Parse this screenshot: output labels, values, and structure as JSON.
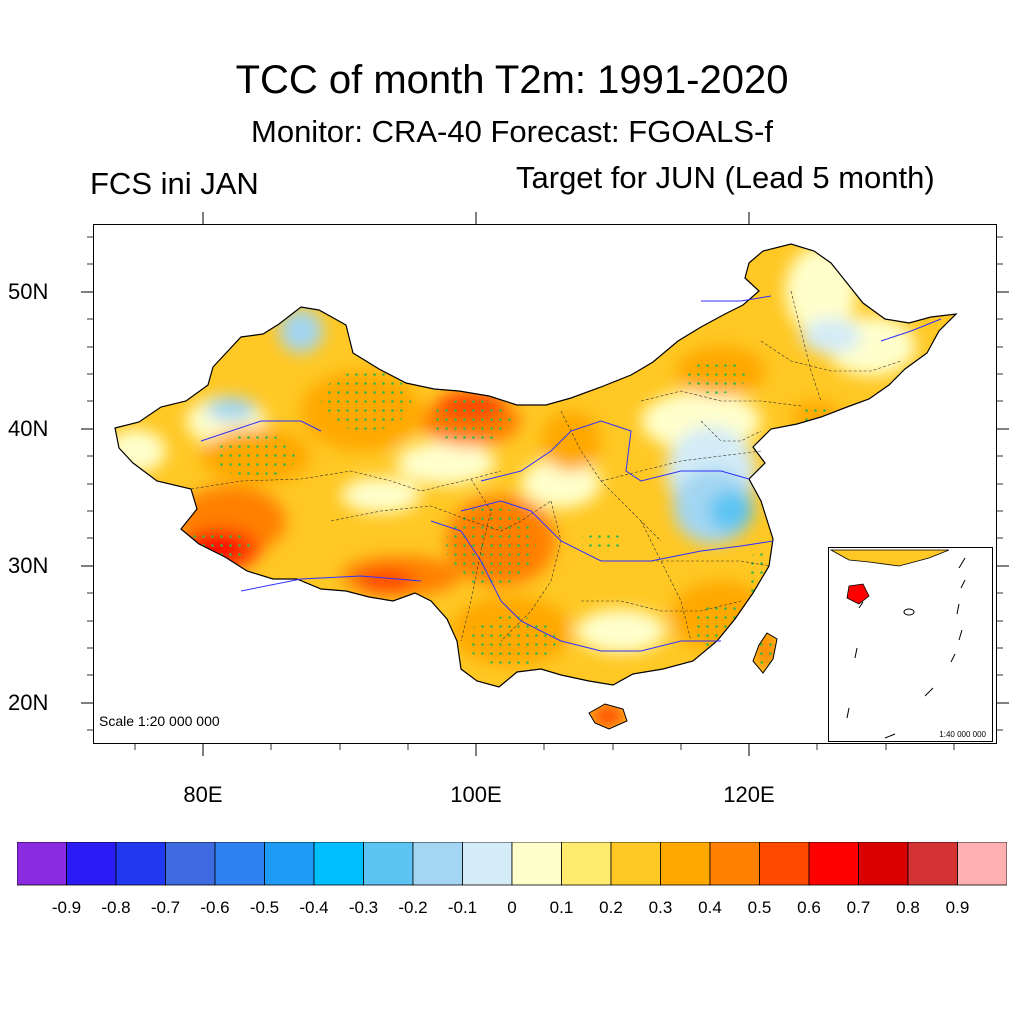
{
  "title": "TCC of month T2m: 1991-2020",
  "subtitle": "Monitor: CRA-40   Forecast: FGOALS-f",
  "left_label": "FCS ini JAN",
  "right_label": "Target for JUN (Lead 5 month)",
  "map": {
    "region": "China",
    "lat_labels": [
      "50N",
      "40N",
      "30N",
      "20N"
    ],
    "lon_labels": [
      "80E",
      "100E",
      "120E"
    ],
    "scale_label": "Scale 1:20 000 000",
    "inset_scale_label": "1:40 000 000",
    "stipple_color": "#2fb84a"
  },
  "colorbar": {
    "colors": [
      "#8a2be2",
      "#2b1cf5",
      "#1f38f0",
      "#3f6be0",
      "#2f80f0",
      "#1e9cf5",
      "#00bfff",
      "#5cc4f2",
      "#a3d6f2",
      "#d4ecf7",
      "#ffffcc",
      "#ffec6e",
      "#ffc824",
      "#ffa800",
      "#ff8000",
      "#ff4a00",
      "#ff0000",
      "#d90000",
      "#d43333",
      "#ffb0b0"
    ],
    "labels": [
      "-0.9",
      "-0.8",
      "-0.7",
      "-0.6",
      "-0.5",
      "-0.4",
      "-0.3",
      "-0.2",
      "-0.1",
      "0",
      "0.1",
      "0.2",
      "0.3",
      "0.4",
      "0.5",
      "0.6",
      "0.7",
      "0.8",
      "0.9"
    ]
  }
}
